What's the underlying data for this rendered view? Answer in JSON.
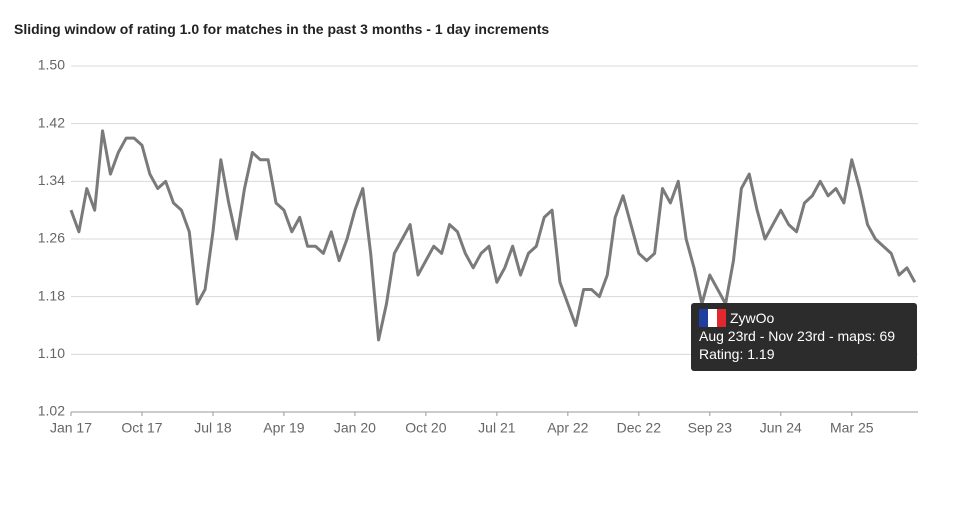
{
  "chart_data": {
    "type": "line",
    "title": "Sliding window of rating 1.0 for matches in the past 3 months - 1 day increments",
    "x": [
      0,
      1,
      2,
      3,
      4,
      5,
      6,
      7,
      8,
      9,
      10,
      11,
      12,
      13,
      14,
      15,
      16,
      17,
      18,
      19,
      20,
      21,
      22,
      23,
      24,
      25,
      26,
      27,
      28,
      29,
      30,
      31,
      32,
      33,
      34,
      35,
      36,
      37,
      38,
      39,
      40,
      41,
      42,
      43,
      44,
      45,
      46,
      47,
      48,
      49,
      50,
      51,
      52,
      53,
      54,
      55,
      56,
      57,
      58,
      59,
      60,
      61,
      62,
      63,
      64,
      65,
      66,
      67,
      68,
      69,
      70,
      71,
      72,
      73,
      74,
      75,
      76,
      77,
      78,
      79,
      80,
      81,
      82,
      83,
      84,
      85,
      86,
      87,
      88,
      89,
      90,
      91,
      92,
      93,
      94,
      95,
      96,
      97,
      98,
      99,
      100,
      101,
      102,
      103,
      104,
      105,
      106,
      107
    ],
    "series": [
      {
        "color": "#7a7a7a",
        "values": [
          1.3,
          1.27,
          1.33,
          1.3,
          1.41,
          1.35,
          1.38,
          1.4,
          1.4,
          1.39,
          1.35,
          1.33,
          1.34,
          1.31,
          1.3,
          1.27,
          1.17,
          1.19,
          1.27,
          1.37,
          1.31,
          1.26,
          1.33,
          1.38,
          1.37,
          1.37,
          1.31,
          1.3,
          1.27,
          1.29,
          1.25,
          1.25,
          1.24,
          1.27,
          1.23,
          1.26,
          1.3,
          1.33,
          1.24,
          1.12,
          1.17,
          1.24,
          1.26,
          1.28,
          1.21,
          1.23,
          1.25,
          1.24,
          1.28,
          1.27,
          1.24,
          1.22,
          1.24,
          1.25,
          1.2,
          1.22,
          1.25,
          1.21,
          1.24,
          1.25,
          1.29,
          1.3,
          1.2,
          1.17,
          1.14,
          1.19,
          1.19,
          1.18,
          1.21,
          1.29,
          1.32,
          1.28,
          1.24,
          1.23,
          1.24,
          1.33,
          1.31,
          1.34,
          1.26,
          1.22,
          1.17,
          1.21,
          1.19,
          1.17,
          1.23,
          1.33,
          1.35,
          1.3,
          1.26,
          1.28,
          1.3,
          1.28,
          1.27,
          1.31,
          1.32,
          1.34,
          1.32,
          1.33,
          1.31,
          1.37,
          1.33,
          1.28,
          1.26,
          1.25,
          1.24,
          1.21,
          1.22,
          1.2
        ]
      }
    ],
    "xlim": [
      0,
      107.4
    ],
    "xticks": [
      {
        "value": 0,
        "label": "Jan 17"
      },
      {
        "value": 9,
        "label": "Oct 17"
      },
      {
        "value": 18,
        "label": "Jul 18"
      },
      {
        "value": 27,
        "label": "Apr 19"
      },
      {
        "value": 36,
        "label": "Jan 20"
      },
      {
        "value": 45,
        "label": "Oct 20"
      },
      {
        "value": 54,
        "label": "Jul 21"
      },
      {
        "value": 63,
        "label": "Apr 22"
      },
      {
        "value": 72,
        "label": "Dec 22"
      },
      {
        "value": 81,
        "label": "Sep 23"
      },
      {
        "value": 90,
        "label": "Jun 24"
      },
      {
        "value": 99,
        "label": "Mar 25"
      }
    ],
    "ylim": [
      1.02,
      1.5
    ],
    "yticks": [
      {
        "value": 1.5,
        "label": "1.50"
      },
      1.42,
      1.34,
      1.26,
      1.18,
      {
        "value": 1.1,
        "label": "1.10"
      },
      1.02
    ],
    "grid": true,
    "tooltip": {
      "name": "ZywOo",
      "period": "Aug 23rd - Nov 23rd - maps: 69",
      "rating": "Rating: 1.19"
    }
  }
}
